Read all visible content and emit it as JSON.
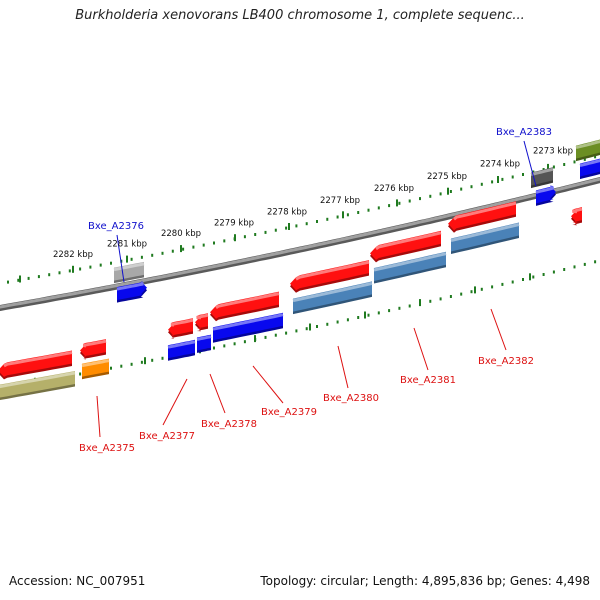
{
  "title": "Burkholderia xenovorans LB400 chromosome 1, complete sequenc...",
  "footer": {
    "accession": "Accession: NC_007951",
    "summary": "Topology: circular; Length: 4,895,836 bp; Genes: 4,498"
  },
  "colors": {
    "backbone": "#808080",
    "tick": "#1f7a1f",
    "label_forward": "#1010cc",
    "label_reverse": "#dd1111",
    "gene_red": "#ff1010",
    "gene_blue": "#0808ee",
    "gene_steel": "#4a82b8",
    "gene_olive": "#b5b06a",
    "gene_orange": "#ff8c00",
    "gene_gray": "#a8a8a8",
    "gene_darkgray": "#555555",
    "gene_green": "#6b8e23"
  },
  "scale_labels": [
    "2282 kbp",
    "2281 kbp",
    "2280 kbp",
    "2279 kbp",
    "2278 kbp",
    "2277 kbp",
    "2276 kbp",
    "2275 kbp",
    "2274 kbp",
    "2273 kbp"
  ],
  "gene_labels": [
    {
      "name": "Bxe_A2376",
      "strand": "forward"
    },
    {
      "name": "Bxe_A2383",
      "strand": "forward"
    },
    {
      "name": "Bxe_A2375",
      "strand": "reverse"
    },
    {
      "name": "Bxe_A2377",
      "strand": "reverse"
    },
    {
      "name": "Bxe_A2378",
      "strand": "reverse"
    },
    {
      "name": "Bxe_A2379",
      "strand": "reverse"
    },
    {
      "name": "Bxe_A2380",
      "strand": "reverse"
    },
    {
      "name": "Bxe_A2381",
      "strand": "reverse"
    },
    {
      "name": "Bxe_A2382",
      "strand": "reverse"
    }
  ]
}
